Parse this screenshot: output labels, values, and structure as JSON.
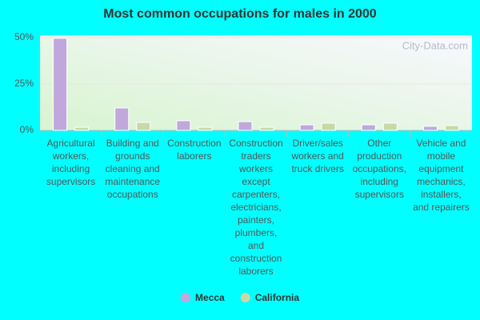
{
  "chart_data": {
    "type": "bar",
    "title": "Most common occupations for males in 2000",
    "watermark": "City-Data.com",
    "categories": [
      "Agricultural workers, including supervisors",
      "Building and grounds cleaning and maintenance occupations",
      "Construction laborers",
      "Construction traders workers except carpenters, electricians, painters, plumbers, and construction laborers",
      "Driver/sales workers and truck drivers",
      "Other production occupations, including supervisors",
      "Vehicle and mobile equipment mechanics, installers, and repairers"
    ],
    "series": [
      {
        "name": "Mecca",
        "color": "#c0a8dc",
        "values": [
          49.6,
          12.1,
          5.2,
          4.7,
          3.0,
          3.0,
          2.2
        ]
      },
      {
        "name": "California",
        "color": "#c8d8a8",
        "values": [
          1.7,
          4.3,
          1.7,
          1.7,
          3.9,
          3.9,
          2.6
        ]
      }
    ],
    "ylim": [
      0,
      51.3
    ],
    "yticks": [
      {
        "value": 0,
        "label": "0%"
      },
      {
        "value": 25,
        "label": "25%"
      },
      {
        "value": 50,
        "label": "50%"
      }
    ],
    "grid": true
  }
}
